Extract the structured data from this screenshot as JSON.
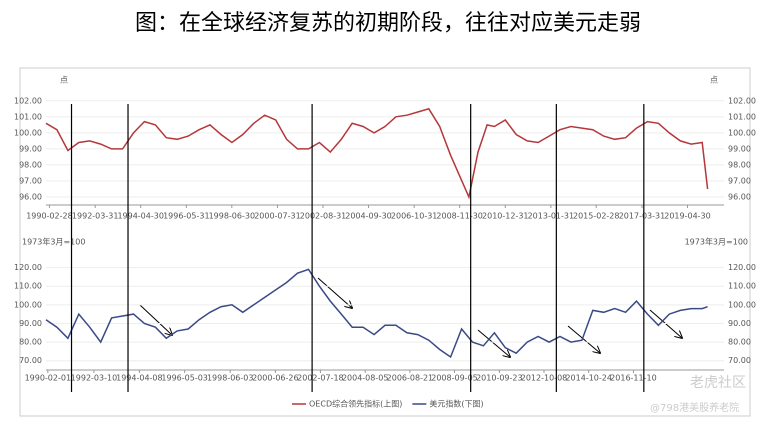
{
  "title": "图：在全球经济复苏的初期阶段，往往对应美元走弱",
  "watermark": [
    "老虎社区",
    "@798港美股养老院"
  ],
  "chart_data": [
    {
      "type": "line",
      "y_unit": "点",
      "xlim": [
        "1990-01-01",
        "2020-12-31"
      ],
      "xticks": [
        "1990-02-28",
        "1992-03-31",
        "1994-04-30",
        "1996-05-31",
        "1998-06-30",
        "2000-07-31",
        "2002-08-31",
        "2004-09-30",
        "2006-10-31",
        "2008-11-30",
        "2010-12-31",
        "2013-01-31",
        "2015-02-28",
        "2017-03-31",
        "2019-04-30"
      ],
      "ylim": [
        95.5,
        102.3
      ],
      "yticks": [
        {
          "value": 96,
          "label": "96.00"
        },
        {
          "value": 97,
          "label": "97.00"
        },
        {
          "value": 98,
          "label": "98.00"
        },
        {
          "value": 99,
          "label": "99.00"
        },
        {
          "value": 100,
          "label": "100.00"
        },
        {
          "value": 101,
          "label": "101.00"
        },
        {
          "value": 102,
          "label": "102.00"
        }
      ],
      "event_lines": [
        "1991-03-01",
        "1993-10-01",
        "2002-03-01",
        "2009-06-01",
        "2013-05-01",
        "2017-05-01"
      ],
      "x": [
        "1990-01-01",
        "1990-07-01",
        "1991-01-01",
        "1991-07-01",
        "1992-01-01",
        "1992-07-01",
        "1993-01-01",
        "1993-07-01",
        "1994-01-01",
        "1994-07-01",
        "1995-01-01",
        "1995-07-01",
        "1996-01-01",
        "1996-07-01",
        "1997-01-01",
        "1997-07-01",
        "1998-01-01",
        "1998-07-01",
        "1999-01-01",
        "1999-07-01",
        "2000-01-01",
        "2000-07-01",
        "2001-01-01",
        "2001-07-01",
        "2002-01-01",
        "2002-07-01",
        "2003-01-01",
        "2003-07-01",
        "2004-01-01",
        "2004-07-01",
        "2005-01-01",
        "2005-07-01",
        "2006-01-01",
        "2006-07-01",
        "2007-01-01",
        "2007-07-01",
        "2008-01-01",
        "2008-07-01",
        "2009-05-01",
        "2009-10-01",
        "2010-03-01",
        "2010-07-01",
        "2011-01-01",
        "2011-07-01",
        "2012-01-01",
        "2012-07-01",
        "2013-01-01",
        "2013-07-01",
        "2014-01-01",
        "2014-07-01",
        "2015-01-01",
        "2015-07-01",
        "2016-01-01",
        "2016-07-01",
        "2017-01-01",
        "2017-07-01",
        "2018-01-01",
        "2018-07-01",
        "2019-01-01",
        "2019-07-01",
        "2020-01-01",
        "2020-04-01"
      ],
      "series": [
        {
          "name": "OECD综合领先指标(上图)",
          "color": "#b5373a",
          "values": [
            100.6,
            100.2,
            98.9,
            99.4,
            99.5,
            99.3,
            99.0,
            99.0,
            100.0,
            100.7,
            100.5,
            99.7,
            99.6,
            99.8,
            100.2,
            100.5,
            99.9,
            99.4,
            99.9,
            100.6,
            101.1,
            100.8,
            99.6,
            99.0,
            99.0,
            99.4,
            98.8,
            99.6,
            100.6,
            100.4,
            100.0,
            100.4,
            101.0,
            101.1,
            101.3,
            101.5,
            100.4,
            98.6,
            96.0,
            98.8,
            100.5,
            100.4,
            100.8,
            99.9,
            99.5,
            99.4,
            99.8,
            100.2,
            100.4,
            100.3,
            100.2,
            99.8,
            99.6,
            99.7,
            100.3,
            100.7,
            100.6,
            100.0,
            99.5,
            99.3,
            99.4,
            96.5
          ]
        }
      ]
    },
    {
      "type": "line",
      "y_unit": "1973年3月=100",
      "xlim": [
        "1990-01-01",
        "2020-12-31"
      ],
      "xticks": [
        "1990-02-01",
        "1992-03-10",
        "1994-04-08",
        "1996-05-03",
        "1998-06-03",
        "2000-06-26",
        "2002-07-18",
        "2004-08-05",
        "2006-08-21",
        "2008-09-05",
        "2010-09-23",
        "2012-10-08",
        "2014-10-24",
        "2016-11-10"
      ],
      "ylim": [
        65,
        123
      ],
      "yticks": [
        {
          "value": 70,
          "label": "70.00"
        },
        {
          "value": 80,
          "label": "80.00"
        },
        {
          "value": 90,
          "label": "90.00"
        },
        {
          "value": 100,
          "label": "100.00"
        },
        {
          "value": 110,
          "label": "110.00"
        },
        {
          "value": 120,
          "label": "120.00"
        }
      ],
      "x": [
        "1990-01-01",
        "1990-07-01",
        "1991-01-01",
        "1991-07-01",
        "1992-01-01",
        "1992-07-01",
        "1993-01-01",
        "1993-07-01",
        "1994-01-01",
        "1994-07-01",
        "1995-01-01",
        "1995-07-01",
        "1996-01-01",
        "1996-07-01",
        "1997-01-01",
        "1997-07-01",
        "1998-01-01",
        "1998-07-01",
        "1999-01-01",
        "1999-07-01",
        "2000-01-01",
        "2000-07-01",
        "2001-01-01",
        "2001-07-01",
        "2002-01-01",
        "2002-07-01",
        "2003-01-01",
        "2003-07-01",
        "2004-01-01",
        "2004-07-01",
        "2005-01-01",
        "2005-07-01",
        "2006-01-01",
        "2006-07-01",
        "2007-01-01",
        "2007-07-01",
        "2008-01-01",
        "2008-07-01",
        "2009-01-01",
        "2009-07-01",
        "2010-01-01",
        "2010-07-01",
        "2011-01-01",
        "2011-07-01",
        "2012-01-01",
        "2012-07-01",
        "2013-01-01",
        "2013-07-01",
        "2014-01-01",
        "2014-07-01",
        "2015-01-01",
        "2015-07-01",
        "2016-01-01",
        "2016-07-01",
        "2017-01-01",
        "2017-07-01",
        "2018-01-01",
        "2018-07-01",
        "2019-01-01",
        "2019-07-01",
        "2020-01-01",
        "2020-04-01"
      ],
      "series": [
        {
          "name": "美元指数(下图)",
          "color": "#3b4a86",
          "values": [
            92,
            88,
            82,
            95,
            88,
            80,
            93,
            94,
            95,
            90,
            88,
            82,
            86,
            87,
            92,
            96,
            99,
            100,
            96,
            100,
            104,
            108,
            112,
            117,
            119,
            110,
            102,
            95,
            88,
            88,
            84,
            89,
            89,
            85,
            84,
            81,
            76,
            72,
            87,
            80,
            78,
            85,
            77,
            74,
            80,
            83,
            80,
            83,
            80,
            81,
            97,
            96,
            98,
            96,
            102,
            95,
            89,
            95,
            97,
            98,
            98,
            99
          ]
        }
      ]
    }
  ]
}
